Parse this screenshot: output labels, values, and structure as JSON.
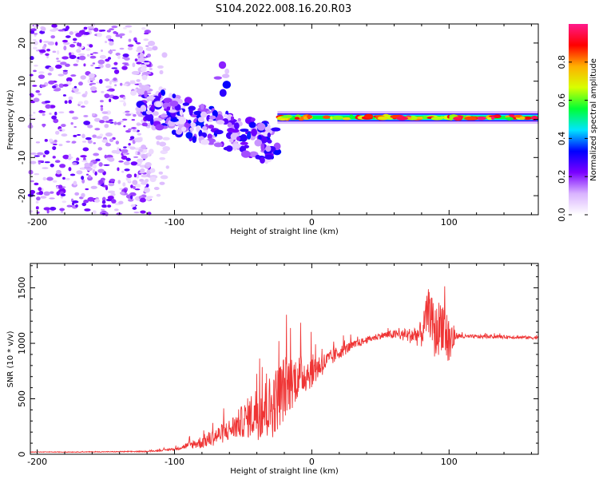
{
  "title": "S104.2022.008.16.20.R03",
  "chart_data": [
    {
      "type": "heatmap",
      "name": "spectrogram",
      "xlabel": "Height of straight line (km)",
      "ylabel": "Frequency (Hz)",
      "xlim": [
        -205,
        165
      ],
      "ylim": [
        -25,
        25
      ],
      "xticks": [
        -200,
        -100,
        0,
        100
      ],
      "yticks": [
        -20,
        -10,
        0,
        10,
        20
      ],
      "colorbar": {
        "label": "Normalized spectral amplitude",
        "range": [
          0,
          1
        ],
        "ticks": [
          0.0,
          0.2,
          0.4,
          0.6,
          0.8
        ],
        "tick_labels": [
          "0.0",
          "0.2",
          "0.4",
          "0.6",
          "0.8"
        ],
        "colors": [
          "#ffffff",
          "#d9b3ff",
          "#7a00ff",
          "#0000ff",
          "#00e5ff",
          "#00ff33",
          "#d8ff00",
          "#ffb000",
          "#ff0000",
          "#ff1a8c"
        ]
      },
      "features": [
        {
          "description": "scattered noise",
          "x_range": [
            -205,
            -125
          ],
          "freq_range": [
            -25,
            25
          ],
          "amplitude": 0.1
        },
        {
          "description": "dispersed chirp",
          "x_range": [
            -125,
            -25
          ],
          "freq_start": 4,
          "freq_end": -7,
          "amplitude": 0.25
        },
        {
          "description": "steady tone",
          "x_range": [
            -25,
            165
          ],
          "freq": 0.5,
          "amplitude": 0.75
        }
      ]
    },
    {
      "type": "line",
      "name": "snr",
      "xlabel": "Height of straight line (km)",
      "ylabel": "SNR (10 * v/v)",
      "xlim": [
        -205,
        165
      ],
      "ylim": [
        0,
        1720
      ],
      "xticks": [
        -200,
        -100,
        0,
        100
      ],
      "yticks": [
        0,
        500,
        1000,
        1500
      ],
      "color": "#ef3434",
      "series": [
        {
          "name": "SNR",
          "x": [
            -205,
            -180,
            -150,
            -120,
            -100,
            -90,
            -80,
            -70,
            -60,
            -50,
            -40,
            -30,
            -20,
            -10,
            0,
            10,
            20,
            30,
            40,
            50,
            60,
            70,
            80,
            85,
            90,
            95,
            100,
            105,
            110,
            130,
            150,
            165
          ],
          "y": [
            20,
            20,
            22,
            25,
            45,
            80,
            110,
            160,
            220,
            300,
            380,
            420,
            600,
            700,
            750,
            830,
            920,
            980,
            1030,
            1070,
            1080,
            1070,
            1080,
            1300,
            1080,
            1200,
            1000,
            1070,
            1060,
            1060,
            1055,
            1050
          ]
        }
      ],
      "noise_amplitude": [
        3,
        3,
        4,
        5,
        10,
        30,
        60,
        80,
        100,
        150,
        250,
        300,
        300,
        200,
        150,
        90,
        60,
        40,
        30,
        30,
        40,
        60,
        120,
        200,
        250,
        250,
        300,
        30,
        20,
        15,
        15,
        15
      ]
    }
  ]
}
